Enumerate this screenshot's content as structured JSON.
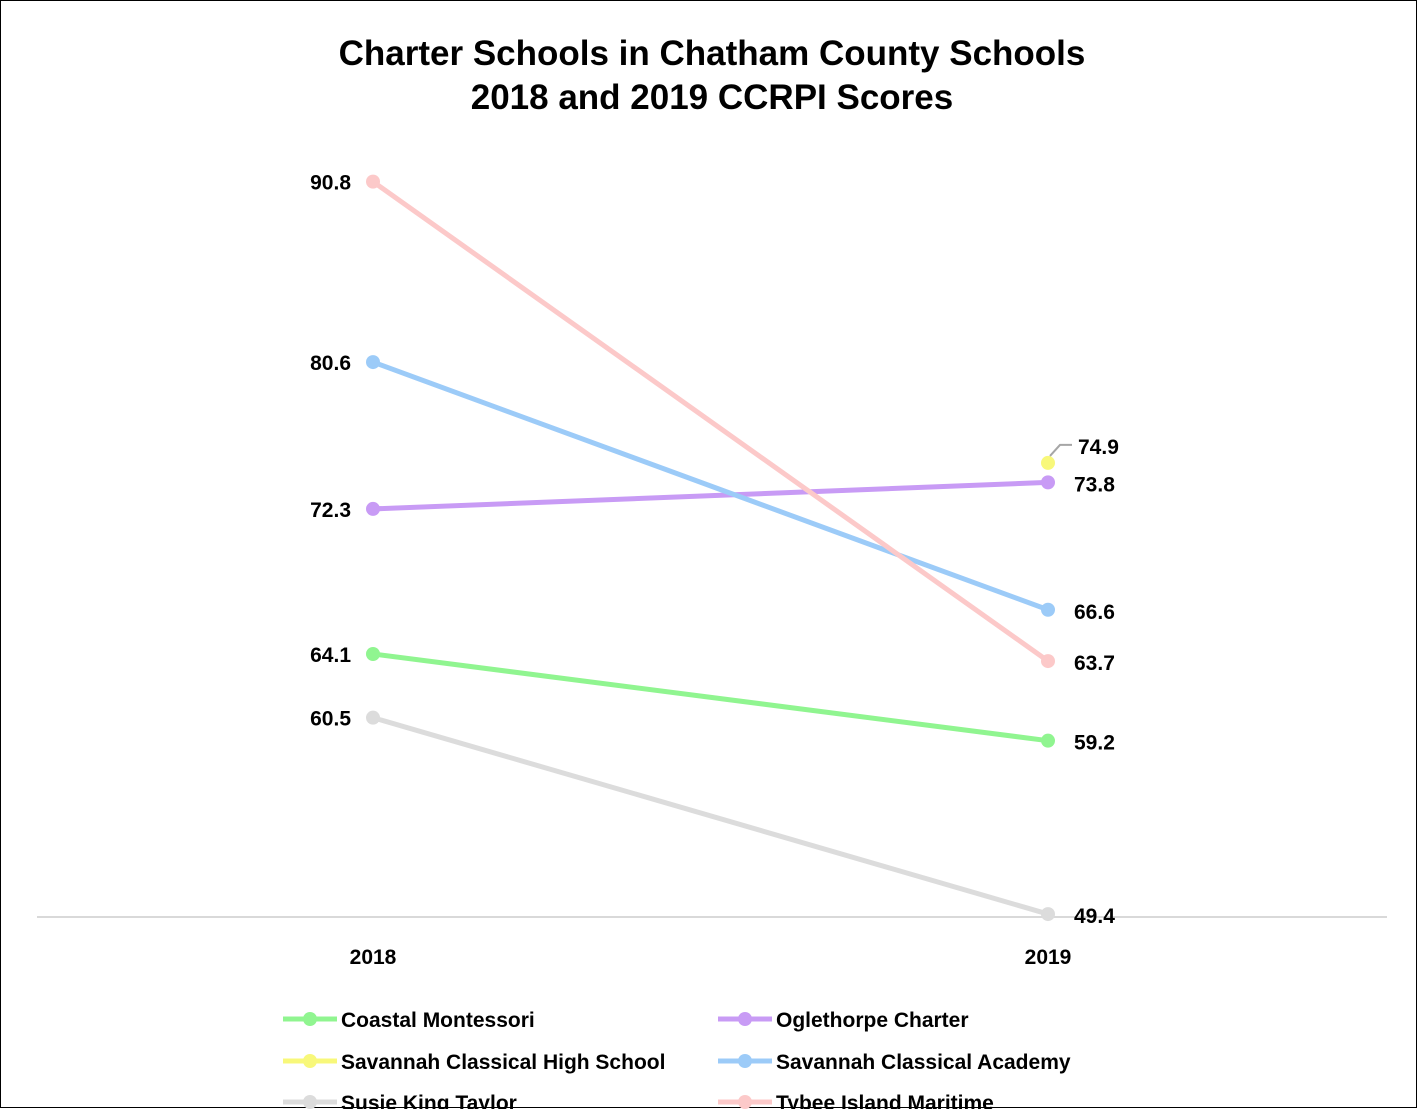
{
  "chart_data": {
    "type": "line",
    "title": "Charter Schools in Chatham County Schools",
    "subtitle": "2018 and 2019 CCRPI Scores",
    "xlabel": "",
    "ylabel": "",
    "categories": [
      "2018",
      "2019"
    ],
    "ylim": [
      44,
      94
    ],
    "grid": false,
    "legend_position": "bottom",
    "series": [
      {
        "name": "Coastal Montessori",
        "color": "#90F590",
        "values": [
          64.1,
          59.2
        ],
        "labels": [
          "64.1",
          "59.2"
        ]
      },
      {
        "name": "Oglethorpe Charter",
        "color": "#C89BF5",
        "values": [
          72.3,
          73.8
        ],
        "labels": [
          "72.3",
          "73.8"
        ]
      },
      {
        "name": "Savannah Classical High School",
        "color": "#F8F87A",
        "values": [
          null,
          74.9
        ],
        "labels": [
          "",
          "74.9"
        ]
      },
      {
        "name": "Savannah Classical Academy",
        "color": "#9CCBF8",
        "values": [
          80.6,
          66.6
        ],
        "labels": [
          "80.6",
          "66.6"
        ]
      },
      {
        "name": "Susie King Taylor",
        "color": "#DCDCDC",
        "values": [
          60.5,
          49.4
        ],
        "labels": [
          "60.5",
          "49.4"
        ]
      },
      {
        "name": "Tybee Island Maritime",
        "color": "#FCC9C9",
        "values": [
          90.8,
          63.7
        ],
        "labels": [
          "90.8",
          "63.7"
        ]
      }
    ]
  }
}
